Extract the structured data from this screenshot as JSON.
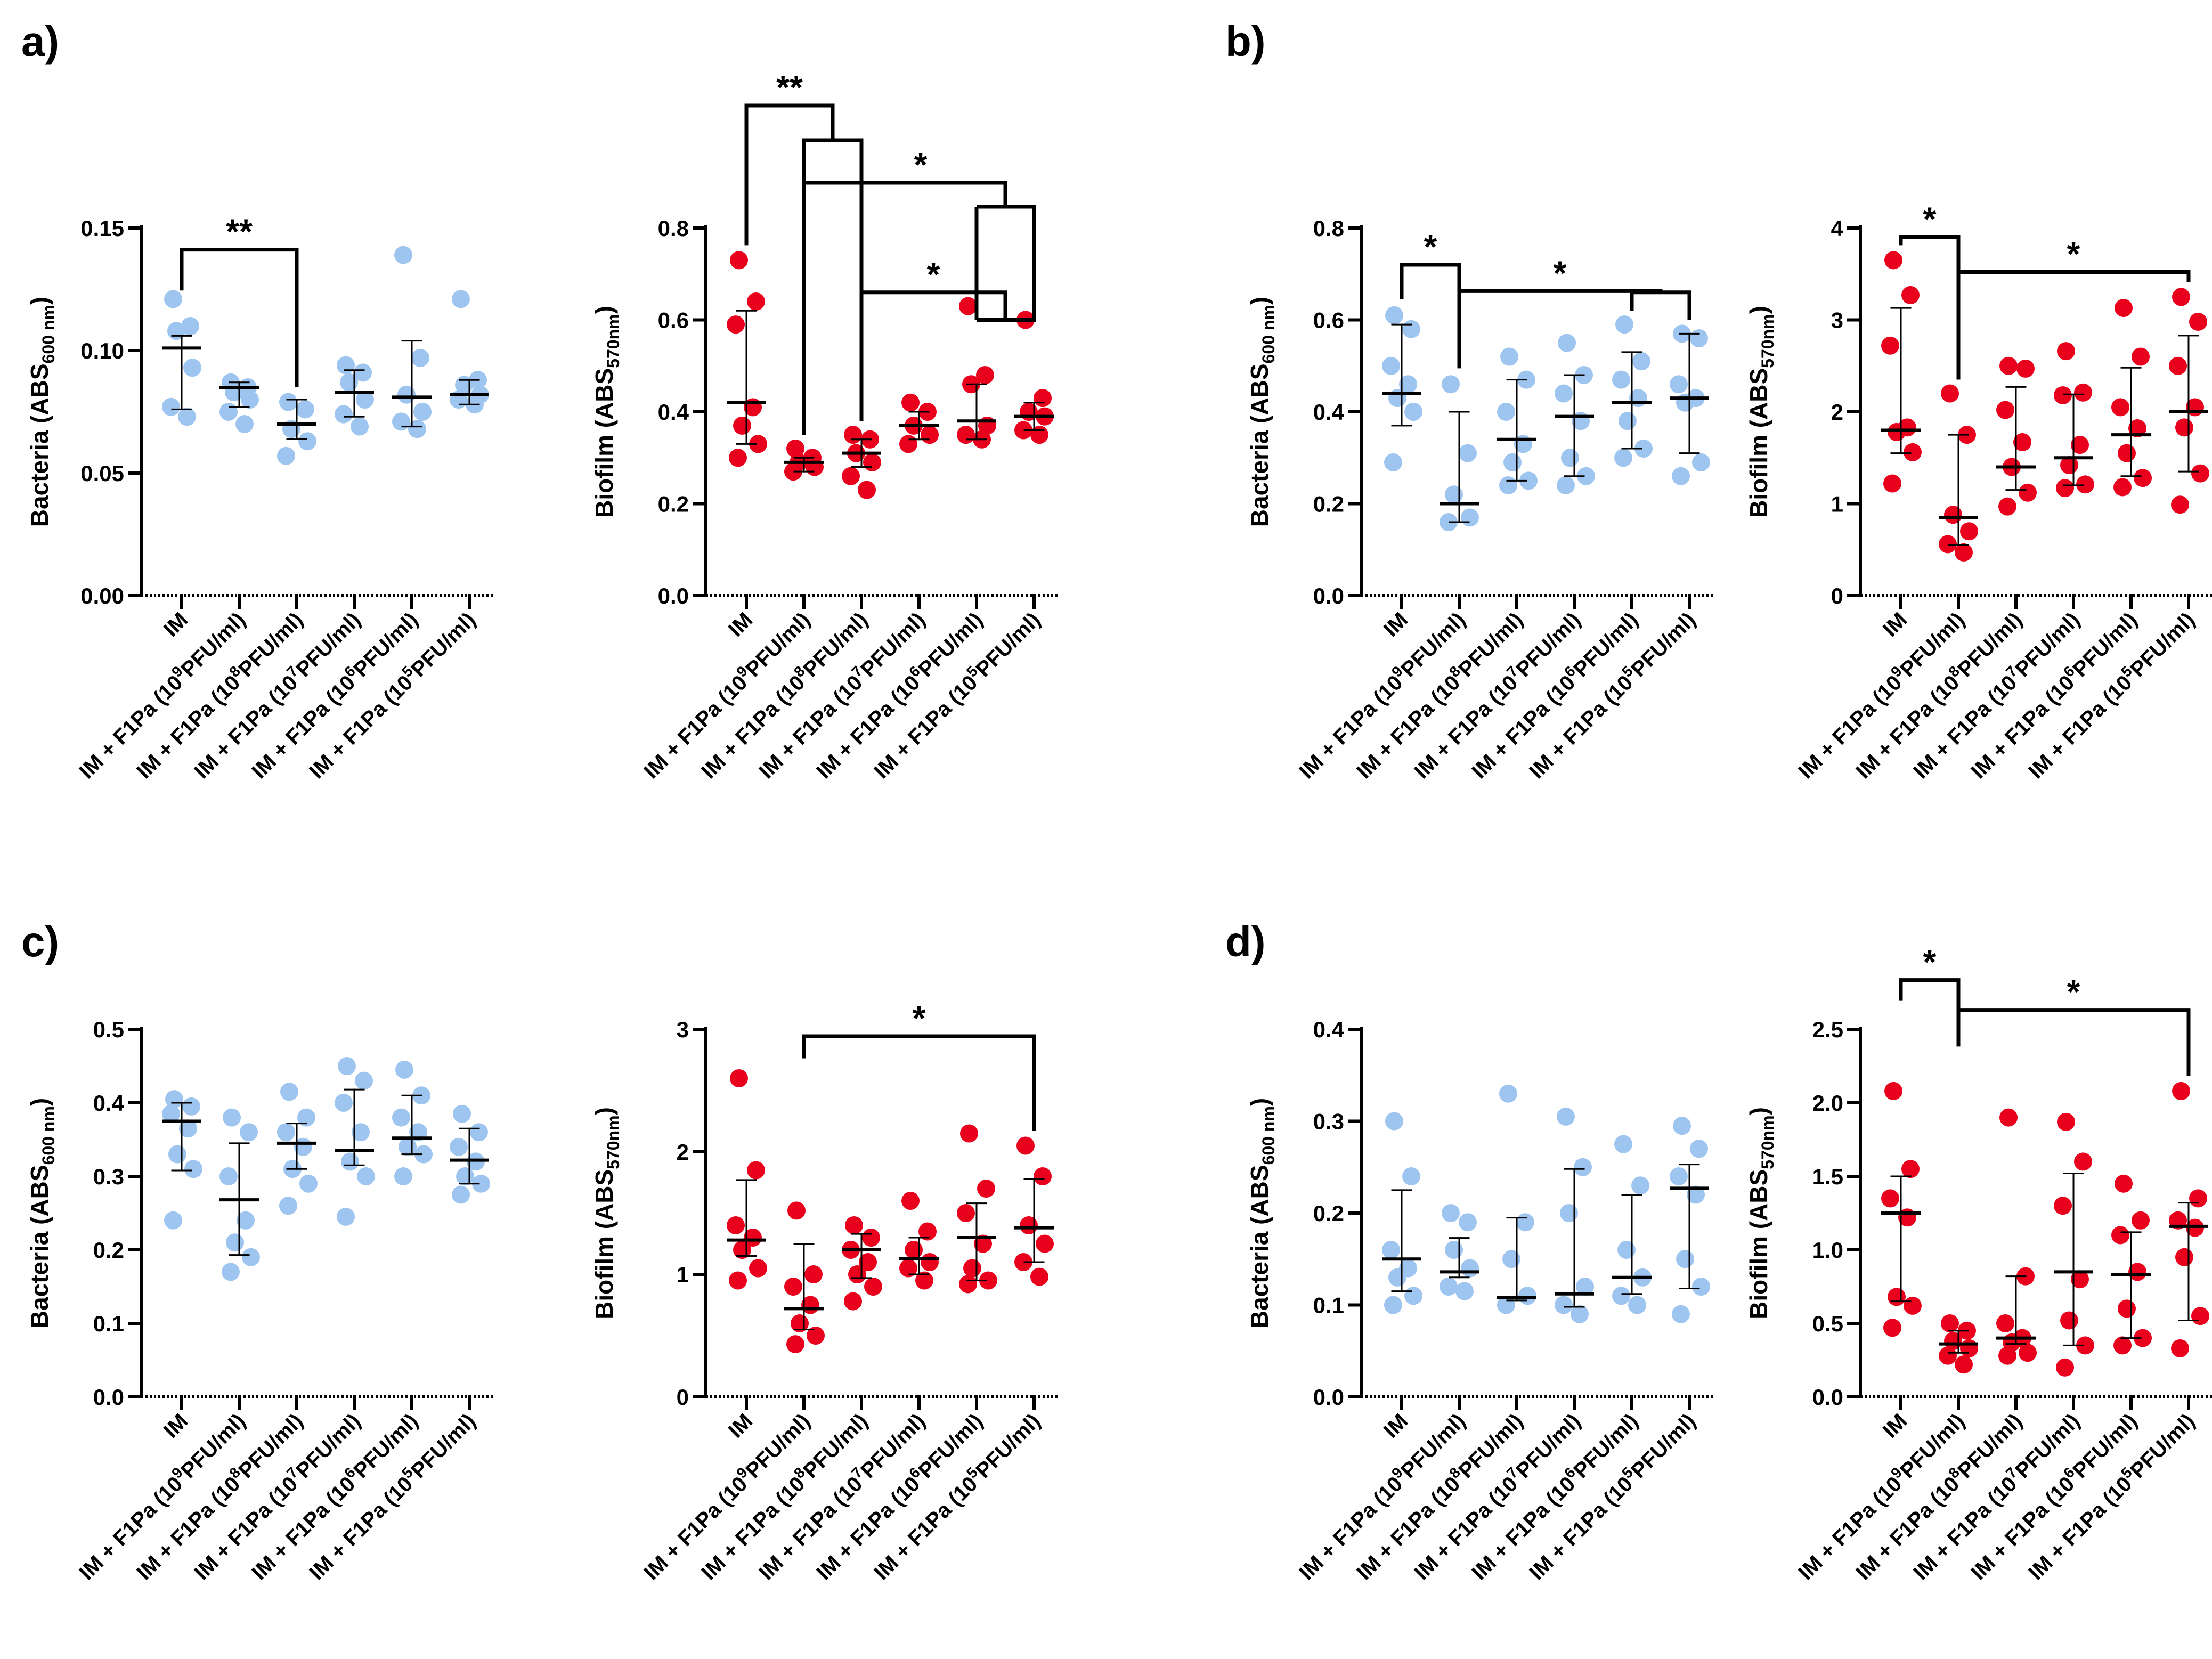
{
  "colors": {
    "bacteria": "#9ec5ef",
    "biofilm": "#e8001c",
    "axis": "#000000"
  },
  "categories": [
    {
      "pre": "IM",
      "exp": "",
      "post": ""
    },
    {
      "pre": "IM + F1Pa (10",
      "exp": "9",
      "post": "PFU/ml)"
    },
    {
      "pre": "IM + F1Pa (10",
      "exp": "8",
      "post": "PFU/ml)"
    },
    {
      "pre": "IM + F1Pa (10",
      "exp": "7",
      "post": "PFU/ml)"
    },
    {
      "pre": "IM + F1Pa (10",
      "exp": "6",
      "post": "PFU/ml)"
    },
    {
      "pre": "IM + F1Pa (10",
      "exp": "5",
      "post": "PFU/ml)"
    }
  ],
  "panels": [
    {
      "letter": "a)",
      "id": "a"
    },
    {
      "letter": "b)",
      "id": "b"
    },
    {
      "letter": "c)",
      "id": "c"
    },
    {
      "letter": "d)",
      "id": "d"
    }
  ],
  "chart_data": [
    {
      "id": "a-bacteria",
      "panel": "a",
      "type": "scatter",
      "color_key": "bacteria",
      "ylabel": {
        "pre": "Bacteria (ABS",
        "sub": "600 nm",
        "post": ")"
      },
      "ylim": [
        0,
        0.15
      ],
      "ticks": [
        0.0,
        0.05,
        0.1,
        0.15
      ],
      "tick_labels": [
        "0.00",
        "0.05",
        "0.10",
        "0.15"
      ],
      "points": [
        [
          0.121,
          0.11,
          0.108,
          0.093,
          0.077,
          0.073
        ],
        [
          0.087,
          0.085,
          0.083,
          0.08,
          0.075,
          0.07
        ],
        [
          0.079,
          0.076,
          0.068,
          0.063,
          0.057
        ],
        [
          0.094,
          0.091,
          0.087,
          0.08,
          0.074,
          0.069
        ],
        [
          0.139,
          0.097,
          0.082,
          0.075,
          0.071,
          0.068
        ],
        [
          0.121,
          0.088,
          0.086,
          0.082,
          0.08,
          0.078
        ]
      ],
      "means": [
        0.101,
        0.085,
        0.07,
        0.083,
        0.081,
        0.082
      ],
      "err": [
        [
          0.076,
          0.106
        ],
        [
          0.077,
          0.087
        ],
        [
          0.064,
          0.08
        ],
        [
          0.073,
          0.092
        ],
        [
          0.069,
          0.104
        ],
        [
          0.078,
          0.088
        ]
      ],
      "sig": [
        {
          "from": 0,
          "to": 2,
          "label": "**"
        }
      ]
    },
    {
      "id": "a-biofilm",
      "panel": "a",
      "type": "scatter",
      "color_key": "biofilm",
      "ylabel": {
        "pre": "Biofilm (ABS",
        "sub": "570nm",
        "post": ")"
      },
      "ylim": [
        0,
        0.8
      ],
      "ticks": [
        0.0,
        0.2,
        0.4,
        0.6,
        0.8
      ],
      "tick_labels": [
        "0.0",
        "0.2",
        "0.4",
        "0.6",
        "0.8"
      ],
      "points": [
        [
          0.73,
          0.64,
          0.59,
          0.41,
          0.37,
          0.33,
          0.3
        ],
        [
          0.32,
          0.3,
          0.29,
          0.28,
          0.27
        ],
        [
          0.35,
          0.34,
          0.31,
          0.29,
          0.26,
          0.23
        ],
        [
          0.42,
          0.4,
          0.37,
          0.35,
          0.33
        ],
        [
          0.63,
          0.48,
          0.46,
          0.37,
          0.35,
          0.34
        ],
        [
          0.6,
          0.43,
          0.4,
          0.39,
          0.36,
          0.35
        ]
      ],
      "means": [
        0.42,
        0.29,
        0.31,
        0.37,
        0.38,
        0.39
      ],
      "err": [
        [
          0.33,
          0.62
        ],
        [
          0.27,
          0.3
        ],
        [
          0.28,
          0.34
        ],
        [
          0.34,
          0.4
        ],
        [
          0.34,
          0.46
        ],
        [
          0.36,
          0.42
        ]
      ],
      "sig_custom": "a"
    },
    {
      "id": "b-bacteria",
      "panel": "b",
      "type": "scatter",
      "color_key": "bacteria",
      "ylabel": {
        "pre": "Bacteria (ABS",
        "sub": "600 nm",
        "post": ")"
      },
      "ylim": [
        0,
        0.8
      ],
      "ticks": [
        0.0,
        0.2,
        0.4,
        0.6,
        0.8
      ],
      "tick_labels": [
        "0.0",
        "0.2",
        "0.4",
        "0.6",
        "0.8"
      ],
      "points": [
        [
          0.61,
          0.58,
          0.5,
          0.46,
          0.43,
          0.4,
          0.29
        ],
        [
          0.46,
          0.31,
          0.22,
          0.17,
          0.16
        ],
        [
          0.52,
          0.47,
          0.4,
          0.33,
          0.29,
          0.25,
          0.24
        ],
        [
          0.55,
          0.48,
          0.44,
          0.38,
          0.3,
          0.26,
          0.24
        ],
        [
          0.59,
          0.51,
          0.47,
          0.43,
          0.38,
          0.32,
          0.3
        ],
        [
          0.57,
          0.56,
          0.46,
          0.43,
          0.42,
          0.29,
          0.26
        ]
      ],
      "means": [
        0.44,
        0.2,
        0.34,
        0.39,
        0.42,
        0.43
      ],
      "err": [
        [
          0.37,
          0.59
        ],
        [
          0.16,
          0.4
        ],
        [
          0.25,
          0.47
        ],
        [
          0.26,
          0.48
        ],
        [
          0.32,
          0.53
        ],
        [
          0.31,
          0.57
        ]
      ],
      "sig": [
        {
          "from": 0,
          "to": 1,
          "label": "*"
        }
      ],
      "sig_custom": "b1"
    },
    {
      "id": "b-biofilm",
      "panel": "b",
      "type": "scatter",
      "color_key": "biofilm",
      "ylabel": {
        "pre": "Biofilm (ABS",
        "sub": "570nm",
        "post": ")"
      },
      "ylim": [
        0,
        4
      ],
      "ticks": [
        0,
        1,
        2,
        3,
        4
      ],
      "tick_labels": [
        "0",
        "1",
        "2",
        "3",
        "4"
      ],
      "points": [
        [
          3.65,
          3.27,
          2.72,
          1.83,
          1.78,
          1.56,
          1.22
        ],
        [
          2.2,
          1.75,
          0.88,
          0.7,
          0.56,
          0.47
        ],
        [
          2.5,
          2.47,
          2.02,
          1.67,
          1.4,
          1.12,
          0.97
        ],
        [
          2.66,
          2.21,
          2.18,
          1.64,
          1.42,
          1.21,
          1.17
        ],
        [
          3.13,
          2.6,
          2.05,
          1.82,
          1.55,
          1.28,
          1.18
        ],
        [
          3.25,
          2.98,
          2.5,
          2.05,
          1.83,
          1.33,
          0.99
        ]
      ],
      "means": [
        1.8,
        0.85,
        1.4,
        1.5,
        1.75,
        2.0
      ],
      "err": [
        [
          1.55,
          3.13
        ],
        [
          0.55,
          1.75
        ],
        [
          1.15,
          2.27
        ],
        [
          1.2,
          2.19
        ],
        [
          1.3,
          2.48
        ],
        [
          1.35,
          2.83
        ]
      ],
      "sig": [
        {
          "from": 0,
          "to": 1,
          "label": "*"
        },
        {
          "from": 1,
          "to": 5,
          "label": "*"
        }
      ]
    },
    {
      "id": "c-bacteria",
      "panel": "c",
      "type": "scatter",
      "color_key": "bacteria",
      "ylabel": {
        "pre": "Bacteria (ABS",
        "sub": "600 nm",
        "post": ")"
      },
      "ylim": [
        0,
        0.5
      ],
      "ticks": [
        0.0,
        0.1,
        0.2,
        0.3,
        0.4,
        0.5
      ],
      "tick_labels": [
        "0.0",
        "0.1",
        "0.2",
        "0.3",
        "0.4",
        "0.5"
      ],
      "points": [
        [
          0.405,
          0.395,
          0.385,
          0.365,
          0.33,
          0.31,
          0.24
        ],
        [
          0.38,
          0.36,
          0.3,
          0.24,
          0.21,
          0.19,
          0.17
        ],
        [
          0.415,
          0.38,
          0.36,
          0.34,
          0.31,
          0.29,
          0.26
        ],
        [
          0.45,
          0.43,
          0.4,
          0.36,
          0.32,
          0.3,
          0.245
        ],
        [
          0.445,
          0.41,
          0.38,
          0.36,
          0.34,
          0.33,
          0.3
        ],
        [
          0.385,
          0.36,
          0.34,
          0.32,
          0.3,
          0.29,
          0.275
        ]
      ],
      "means": [
        0.375,
        0.268,
        0.345,
        0.335,
        0.352,
        0.322
      ],
      "err": [
        [
          0.308,
          0.4
        ],
        [
          0.193,
          0.345
        ],
        [
          0.31,
          0.372
        ],
        [
          0.315,
          0.418
        ],
        [
          0.33,
          0.41
        ],
        [
          0.29,
          0.365
        ]
      ]
    },
    {
      "id": "c-biofilm",
      "panel": "c",
      "type": "scatter",
      "color_key": "biofilm",
      "ylabel": {
        "pre": "Biofilm (ABS",
        "sub": "570nm",
        "post": ")"
      },
      "ylim": [
        0,
        3
      ],
      "ticks": [
        0,
        1,
        2,
        3
      ],
      "tick_labels": [
        "0",
        "1",
        "2",
        "3"
      ],
      "points": [
        [
          2.6,
          1.85,
          1.4,
          1.3,
          1.2,
          1.05,
          0.95
        ],
        [
          1.52,
          1.0,
          0.9,
          0.75,
          0.6,
          0.5,
          0.43
        ],
        [
          1.4,
          1.3,
          1.2,
          1.1,
          1.0,
          0.9,
          0.78
        ],
        [
          1.6,
          1.35,
          1.2,
          1.1,
          1.05,
          0.95
        ],
        [
          2.15,
          1.7,
          1.5,
          1.25,
          1.05,
          0.95,
          0.92
        ],
        [
          2.05,
          1.8,
          1.4,
          1.25,
          1.1,
          0.98
        ]
      ],
      "means": [
        1.28,
        0.72,
        1.2,
        1.13,
        1.3,
        1.38
      ],
      "err": [
        [
          1.15,
          1.77
        ],
        [
          0.55,
          1.25
        ],
        [
          0.97,
          1.33
        ],
        [
          1.0,
          1.3
        ],
        [
          0.95,
          1.58
        ],
        [
          1.1,
          1.78
        ]
      ],
      "sig": [
        {
          "from": 1,
          "to": 5,
          "label": "*"
        }
      ]
    },
    {
      "id": "d-bacteria",
      "panel": "d",
      "type": "scatter",
      "color_key": "bacteria",
      "ylabel": {
        "pre": "Bacteria (ABS",
        "sub": "600 nm",
        "post": ")"
      },
      "ylim": [
        0,
        0.4
      ],
      "ticks": [
        0.0,
        0.1,
        0.2,
        0.3,
        0.4
      ],
      "tick_labels": [
        "0.0",
        "0.1",
        "0.2",
        "0.3",
        "0.4"
      ],
      "points": [
        [
          0.3,
          0.24,
          0.16,
          0.14,
          0.13,
          0.11,
          0.1
        ],
        [
          0.2,
          0.19,
          0.16,
          0.14,
          0.12,
          0.115
        ],
        [
          0.33,
          0.19,
          0.15,
          0.11,
          0.1
        ],
        [
          0.305,
          0.25,
          0.2,
          0.12,
          0.1,
          0.09
        ],
        [
          0.275,
          0.23,
          0.16,
          0.13,
          0.11,
          0.1
        ],
        [
          0.295,
          0.27,
          0.24,
          0.22,
          0.15,
          0.12,
          0.09
        ]
      ],
      "means": [
        0.15,
        0.136,
        0.108,
        0.112,
        0.13,
        0.227
      ],
      "err": [
        [
          0.115,
          0.225
        ],
        [
          0.13,
          0.173
        ],
        [
          0.105,
          0.195
        ],
        [
          0.098,
          0.248
        ],
        [
          0.112,
          0.22
        ],
        [
          0.118,
          0.253
        ]
      ]
    },
    {
      "id": "d-biofilm",
      "panel": "d",
      "type": "scatter",
      "color_key": "biofilm",
      "ylabel": {
        "pre": "Biofilm (ABS",
        "sub": "570nm",
        "post": ")"
      },
      "ylim": [
        0,
        2.5
      ],
      "ticks": [
        0.0,
        0.5,
        1.0,
        1.5,
        2.0,
        2.5
      ],
      "tick_labels": [
        "0.0",
        "0.5",
        "1.0",
        "1.5",
        "2.0",
        "2.5"
      ],
      "points": [
        [
          2.08,
          1.55,
          1.35,
          1.22,
          0.68,
          0.62,
          0.47
        ],
        [
          0.5,
          0.45,
          0.38,
          0.33,
          0.28,
          0.22
        ],
        [
          1.9,
          0.82,
          0.5,
          0.4,
          0.37,
          0.3,
          0.28
        ],
        [
          1.87,
          1.6,
          1.3,
          0.8,
          0.52,
          0.35,
          0.2
        ],
        [
          1.45,
          1.2,
          1.1,
          0.85,
          0.6,
          0.4,
          0.35
        ],
        [
          2.08,
          1.35,
          1.2,
          1.15,
          0.95,
          0.55,
          0.33
        ]
      ],
      "means": [
        1.25,
        0.36,
        0.4,
        0.85,
        0.83,
        1.16
      ],
      "err": [
        [
          0.65,
          1.5
        ],
        [
          0.3,
          0.45
        ],
        [
          0.36,
          0.82
        ],
        [
          0.35,
          1.52
        ],
        [
          0.4,
          1.12
        ],
        [
          0.52,
          1.32
        ]
      ],
      "sig": [
        {
          "from": 0,
          "to": 1,
          "label": "*"
        },
        {
          "from": 1,
          "to": 5,
          "label": "*"
        }
      ]
    }
  ]
}
